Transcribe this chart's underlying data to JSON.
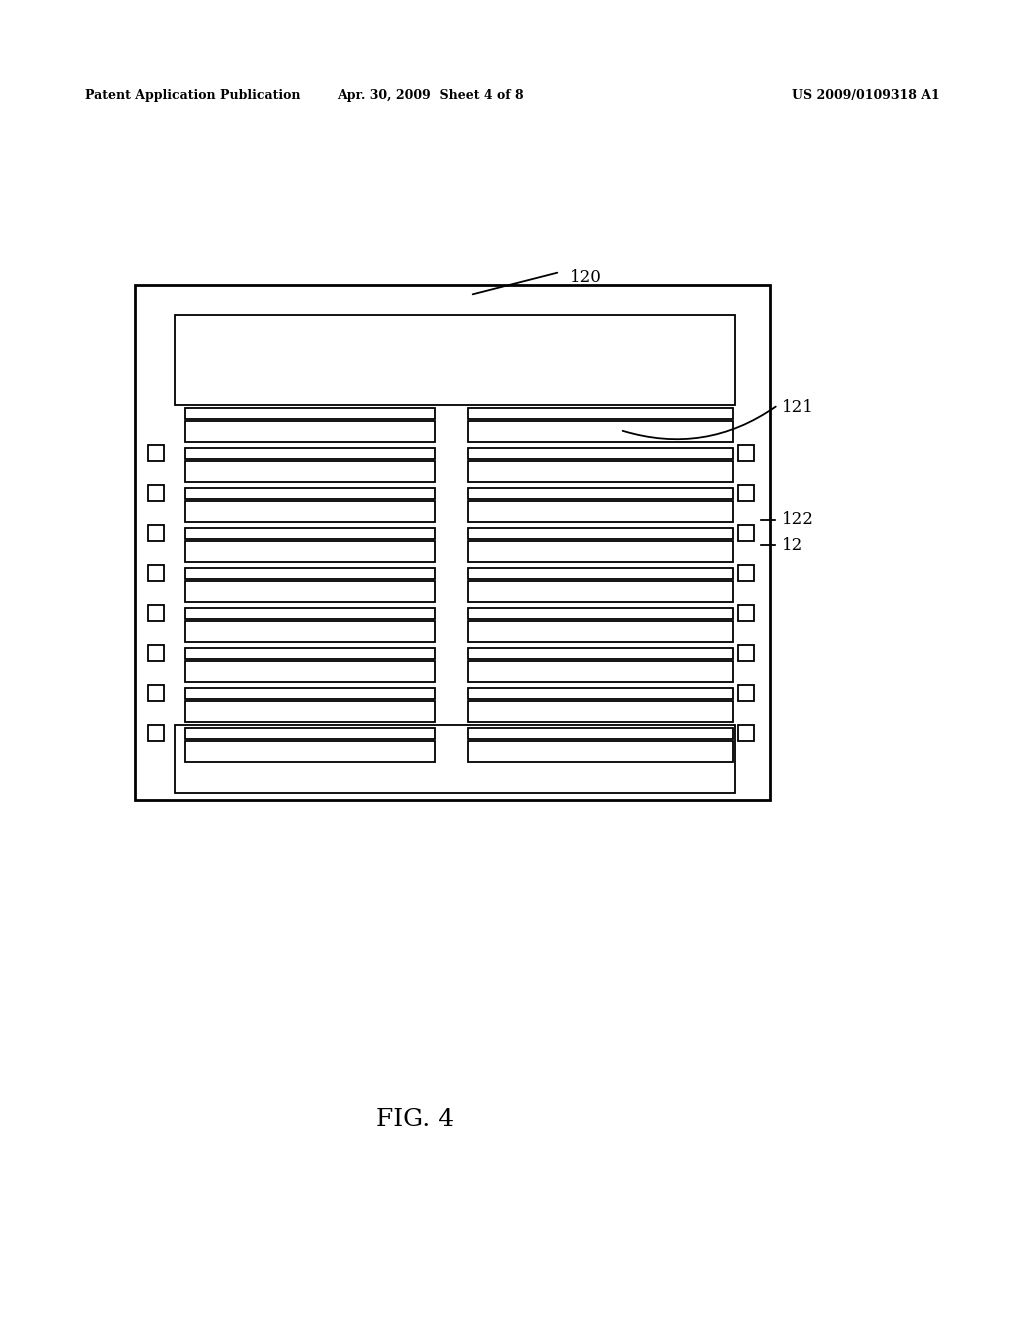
{
  "bg_color": "#ffffff",
  "header_left": "Patent Application Publication",
  "header_mid": "Apr. 30, 2009  Sheet 4 of 8",
  "header_right": "US 2009/0109318 A1",
  "fig_label": "FIG. 4",
  "lw": 1.3
}
